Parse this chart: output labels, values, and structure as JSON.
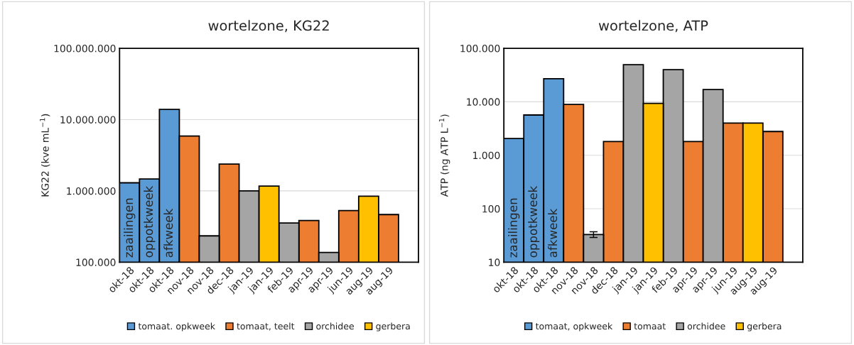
{
  "chart_data": [
    {
      "type": "bar",
      "title": "wortelzone, KG22",
      "ylabel": "KG22 (kve mL$^{−1}$)",
      "log": true,
      "grid": "y",
      "legend": "bottom",
      "categories": [
        "okt-18",
        "okt-18",
        "okt-18",
        "nov-18",
        "nov-18",
        "dec-18",
        "jan-19",
        "jan-19",
        "feb-19",
        "apr-19",
        "apr-19",
        "jun-19",
        "aug-19",
        "aug-19"
      ],
      "ylim": [
        100000,
        100000000
      ],
      "yticks": [
        {
          "value": 100000,
          "label": "100.000"
        },
        {
          "value": 1000000,
          "label": "1.000.000"
        },
        {
          "value": 10000000,
          "label": "10.000.000"
        },
        {
          "value": 100000000,
          "label": "100.000.000"
        }
      ],
      "annotations": [
        "zaailingen",
        "oppotkweek",
        "afkweek"
      ],
      "series": [
        {
          "name": "tomaat. opkweek",
          "color": "#5b9bd5",
          "values": [
            1300000,
            1470000,
            13900000,
            null,
            null,
            null,
            null,
            null,
            null,
            null,
            null,
            null,
            null,
            null
          ]
        },
        {
          "name": "tomaat, teelt",
          "color": "#ed7d31",
          "values": [
            null,
            null,
            null,
            5870000,
            null,
            2380000,
            null,
            null,
            null,
            385000,
            null,
            530000,
            null,
            466000
          ]
        },
        {
          "name": "orchidee",
          "color": "#a5a5a5",
          "values": [
            null,
            null,
            null,
            null,
            234000,
            null,
            1000000,
            null,
            354000,
            null,
            137000,
            null,
            null,
            null
          ]
        },
        {
          "name": "gerbera",
          "color": "#ffc000",
          "values": [
            null,
            null,
            null,
            null,
            null,
            null,
            null,
            1170000,
            null,
            null,
            null,
            null,
            842000,
            null
          ]
        }
      ]
    },
    {
      "type": "bar",
      "title": "wortelzone, ATP",
      "ylabel": "ATP (ng ATP L$^{−1}$)",
      "log": true,
      "grid": "y",
      "legend": "bottom",
      "categories": [
        "okt-18",
        "okt-18",
        "okt-18",
        "nov-18",
        "nov-18",
        "dec-18",
        "jan-19",
        "jan-19",
        "feb-19",
        "apr-19",
        "apr-19",
        "jun-19",
        "aug-19",
        "aug-19"
      ],
      "ylim": [
        10,
        100000
      ],
      "yticks": [
        10,
        100,
        {
          "value": 1000,
          "label": "1.000"
        },
        {
          "value": 10000,
          "label": "10.000"
        },
        {
          "value": 100000,
          "label": "100.000"
        }
      ],
      "annotations": [
        "zaailingen",
        "oppotkweek",
        "afkweek"
      ],
      "series": [
        {
          "name": "tomaat, opkweek",
          "color": "#5b9bd5",
          "values": [
            2060,
            5660,
            27000,
            null,
            null,
            null,
            null,
            null,
            null,
            null,
            null,
            null,
            null,
            null
          ]
        },
        {
          "name": "tomaat",
          "color": "#ed7d31",
          "values": [
            null,
            null,
            null,
            8900,
            null,
            1800,
            null,
            null,
            null,
            1800,
            null,
            4000,
            null,
            2780
          ]
        },
        {
          "name": "orchidee",
          "color": "#a5a5a5",
          "values": [
            null,
            null,
            null,
            null,
            33,
            null,
            49300,
            null,
            39800,
            null,
            16900,
            null,
            null,
            null
          ],
          "errors": [
            null,
            null,
            null,
            null,
            4,
            null,
            null,
            null,
            null,
            null,
            null,
            null,
            null,
            null
          ]
        },
        {
          "name": "gerbera",
          "color": "#ffc000",
          "values": [
            null,
            null,
            null,
            null,
            null,
            null,
            null,
            9330,
            null,
            null,
            null,
            null,
            4000,
            null
          ]
        }
      ]
    }
  ]
}
